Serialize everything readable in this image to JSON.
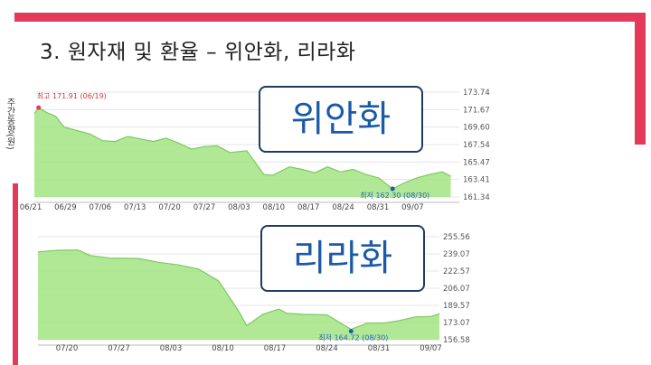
{
  "slide": {
    "title": "3. 원자재 및 환율 – 위안화, 리라화",
    "side_label": "주간동향(원)",
    "accent_color": "#e33a5c"
  },
  "chart_data": [
    {
      "type": "area",
      "callout": "위안화",
      "color": "#a3e484",
      "line_color": "#7cc95f",
      "ylim": [
        161.34,
        173.74
      ],
      "yticks": [
        "173.74",
        "171.67",
        "169.60",
        "167.54",
        "165.47",
        "163.41",
        "161.34"
      ],
      "xticks": [
        "06/21",
        "06/29",
        "07/06",
        "07/13",
        "07/20",
        "07/27",
        "08/03",
        "08/10",
        "08/17",
        "08/24",
        "08/31",
        "09/07"
      ],
      "annotations": {
        "high": {
          "label": "최고 171.91 (06/19)",
          "x": 0.01,
          "y": 171.91
        },
        "low": {
          "label": "최저 162.30 (08/30)",
          "x": 0.843,
          "y": 162.3
        }
      },
      "x": [
        0,
        0.01,
        0.03,
        0.05,
        0.07,
        0.1,
        0.13,
        0.16,
        0.19,
        0.22,
        0.25,
        0.28,
        0.31,
        0.34,
        0.37,
        0.4,
        0.43,
        0.46,
        0.5,
        0.54,
        0.56,
        0.6,
        0.63,
        0.66,
        0.69,
        0.72,
        0.75,
        0.78,
        0.81,
        0.843,
        0.87,
        0.9,
        0.93,
        0.96,
        0.98
      ],
      "values": [
        171.2,
        171.91,
        171.3,
        170.9,
        169.6,
        169.2,
        168.8,
        168.0,
        167.9,
        168.5,
        168.2,
        167.9,
        168.3,
        167.7,
        167.0,
        167.3,
        167.4,
        166.6,
        166.8,
        164.0,
        163.9,
        164.9,
        164.6,
        164.2,
        164.9,
        164.3,
        164.6,
        164.0,
        163.6,
        162.3,
        163.0,
        163.6,
        164.0,
        164.3,
        163.8
      ]
    },
    {
      "type": "area",
      "callout": "리라화",
      "color": "#a3e484",
      "line_color": "#7cc95f",
      "ylim": [
        156.58,
        255.56
      ],
      "yticks": [
        "255.56",
        "239.07",
        "222.57",
        "206.07",
        "189.57",
        "173.07",
        "156.58"
      ],
      "xticks": [
        "07/20",
        "07/27",
        "08/03",
        "08/10",
        "08/17",
        "08/24",
        "08/31",
        "09/07"
      ],
      "annotations": {
        "low": {
          "label": "최저 164.72 (08/30)",
          "x": 0.78,
          "y": 164.72
        }
      },
      "x": [
        0,
        0.05,
        0.1,
        0.13,
        0.18,
        0.25,
        0.3,
        0.35,
        0.4,
        0.45,
        0.5,
        0.52,
        0.56,
        0.6,
        0.62,
        0.66,
        0.72,
        0.78,
        0.82,
        0.86,
        0.9,
        0.94,
        0.98,
        1.0
      ],
      "values": [
        241.0,
        242.5,
        242.8,
        237.5,
        235.0,
        234.6,
        231.0,
        228.5,
        224.5,
        213.0,
        184.0,
        170.0,
        181.0,
        186.0,
        182.0,
        181.0,
        180.5,
        166.5,
        172.5,
        172.5,
        175.0,
        178.5,
        179.0,
        181.5
      ]
    }
  ]
}
